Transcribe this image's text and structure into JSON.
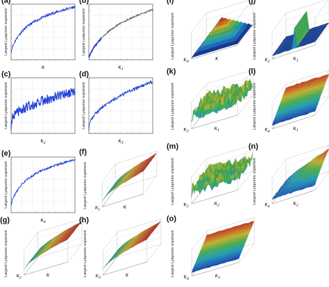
{
  "figure": {
    "ylabel": "Largest Lyapunov exponent",
    "colormap": [
      "#0b1f78",
      "#1b5fbf",
      "#1fa4b8",
      "#47b04f",
      "#c8b62e",
      "#d05a22",
      "#a3151b"
    ],
    "line_color": "#1f3fd6",
    "line_color_b": "#555555"
  },
  "chart_data": [
    {
      "id": "a",
      "panel_label": "(a)",
      "type": "line",
      "xlabel": "K",
      "ylabel": "Largest Lyapunov exponent",
      "shape": "log",
      "noise": 0.025,
      "color": "#1f3fd6",
      "grid": true
    },
    {
      "id": "b",
      "panel_label": "(b)",
      "type": "line",
      "xlabel": "K1",
      "ylabel": "Largest Lyapunov exponent",
      "shape": "sigmoid",
      "noise": 0.015,
      "color": "#555555",
      "grid": true
    },
    {
      "id": "c",
      "panel_label": "(c)",
      "type": "line",
      "xlabel": "K2",
      "ylabel": "Largest Lyapunov exponent",
      "shape": "slow",
      "noise": 0.09,
      "color": "#1f3fd6",
      "grid": true
    },
    {
      "id": "d",
      "panel_label": "(d)",
      "type": "line",
      "xlabel": "K3",
      "ylabel": "Largest Lyapunov exponent",
      "shape": "sqrt",
      "noise": 0.03,
      "color": "#1f3fd6",
      "grid": true
    },
    {
      "id": "e",
      "panel_label": "(e)",
      "type": "line",
      "xlabel": "K4",
      "ylabel": "Largest Lyapunov exponent",
      "shape": "log",
      "noise": 0.02,
      "color": "#1f3fd6",
      "grid": true
    },
    {
      "id": "f",
      "panel_label": "(f)",
      "type": "surface",
      "xlabel": "K1",
      "ylabel2": "K",
      "zlabel": "Largest Lyapunov exponent",
      "shape": "ramp_u",
      "noise": 0.02
    },
    {
      "id": "g",
      "panel_label": "(g)",
      "type": "surface",
      "xlabel": "K2",
      "ylabel2": "K",
      "zlabel": "Largest Lyapunov exponent",
      "shape": "ramp_u",
      "noise": 0.02
    },
    {
      "id": "h",
      "panel_label": "(h)",
      "type": "surface",
      "xlabel": "K3",
      "ylabel2": "K",
      "zlabel": "Largest Lyapunov exponent",
      "shape": "ramp_u",
      "noise": 0.02
    },
    {
      "id": "i",
      "panel_label": "(i)",
      "type": "surface",
      "xlabel": "K4",
      "ylabel2": "K",
      "zlabel": "Largest Lyapunov exponent",
      "shape": "pyramid",
      "noise": 0.01
    },
    {
      "id": "j",
      "panel_label": "(j)",
      "type": "surface",
      "xlabel": "K2",
      "ylabel2": "K1",
      "zlabel": "Largest Lyapunov exponent",
      "shape": "flat_spike",
      "noise": 0.02
    },
    {
      "id": "k",
      "panel_label": "(k)",
      "type": "surface",
      "xlabel": "K3",
      "ylabel2": "K1",
      "zlabel": "Largest Lyapunov exponent",
      "shape": "noise",
      "noise": 0.55
    },
    {
      "id": "l",
      "panel_label": "(l)",
      "type": "surface",
      "xlabel": "K4",
      "ylabel2": "K1",
      "zlabel": "Largest Lyapunov exponent",
      "shape": "ramp_v",
      "noise": 0.04
    },
    {
      "id": "m",
      "panel_label": "(m)",
      "type": "surface",
      "xlabel": "K3",
      "ylabel2": "K2",
      "zlabel": "Largest Lyapunov exponent",
      "shape": "noise",
      "noise": 0.6
    },
    {
      "id": "n",
      "panel_label": "(n)",
      "type": "surface",
      "xlabel": "K4",
      "ylabel2": "K2",
      "zlabel": "Largest Lyapunov exponent",
      "shape": "corner_bump",
      "noise": 0.04
    },
    {
      "id": "o",
      "panel_label": "(o)",
      "type": "surface",
      "xlabel": "K4",
      "ylabel2": "K3",
      "zlabel": "Largest Lyapunov exponent",
      "shape": "ramp_v",
      "noise": 0.03
    }
  ]
}
